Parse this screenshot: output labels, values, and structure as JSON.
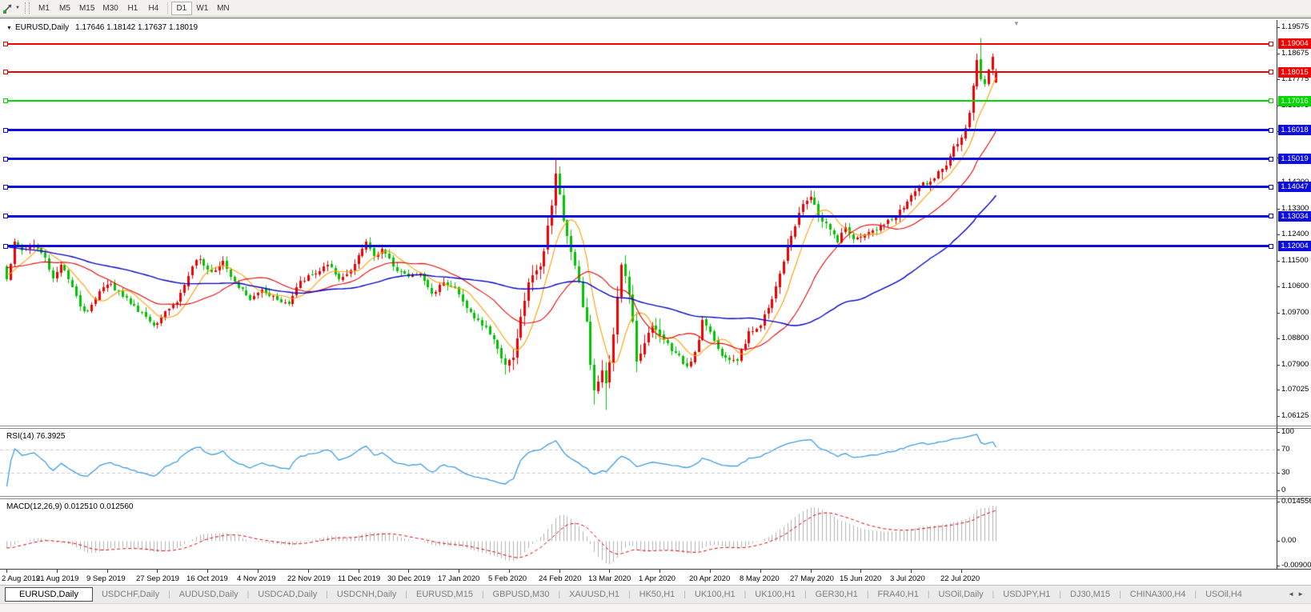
{
  "toolbar": {
    "timeframes": [
      "M1",
      "M5",
      "M15",
      "M30",
      "H1",
      "H4",
      "D1",
      "W1",
      "MN"
    ],
    "active": "D1",
    "separator_after": "H4"
  },
  "chart": {
    "symbol_label": "EURUSD,Daily",
    "ohlc_text": "1.17646 1.18142 1.17637 1.18019"
  },
  "price_axis": {
    "range": {
      "top": 1.19824,
      "bottom": 1.05791
    },
    "ticks": [
      "1.19575",
      "1.18675",
      "1.17775",
      "1.16875",
      "1.15975",
      "1.15075",
      "1.14200",
      "1.13300",
      "1.12400",
      "1.11500",
      "1.10600",
      "1.09700",
      "1.08800",
      "1.07900",
      "1.07025",
      "1.06125"
    ]
  },
  "chart_data": {
    "type": "candlestick",
    "symbol": "EURUSD",
    "timeframe": "Daily",
    "up_color": "#ee0000",
    "down_color": "#00c300",
    "candles": {
      "count": 257,
      "seed": 1337,
      "prehistory": {
        "from": 1.131,
        "to": 1.1095,
        "bars": 60
      },
      "anchors": [
        [
          0,
          1.1085
        ],
        [
          2,
          1.1215
        ],
        [
          4,
          1.1185
        ],
        [
          7,
          1.1205
        ],
        [
          10,
          1.116
        ],
        [
          12,
          1.109
        ],
        [
          14,
          1.1135
        ],
        [
          17,
          1.106
        ],
        [
          19,
          1.099
        ],
        [
          21,
          1.0975
        ],
        [
          24,
          1.1045
        ],
        [
          27,
          1.107
        ],
        [
          30,
          1.1025
        ],
        [
          33,
          1.0995
        ],
        [
          36,
          1.0955
        ],
        [
          38,
          1.0925
        ],
        [
          41,
          1.0975
        ],
        [
          44,
          1.1005
        ],
        [
          48,
          1.113
        ],
        [
          50,
          1.1155
        ],
        [
          53,
          1.111
        ],
        [
          56,
          1.115
        ],
        [
          59,
          1.1075
        ],
        [
          63,
          1.1015
        ],
        [
          66,
          1.105
        ],
        [
          70,
          1.1015
        ],
        [
          73,
          1.1
        ],
        [
          76,
          1.108
        ],
        [
          80,
          1.1105
        ],
        [
          83,
          1.1135
        ],
        [
          86,
          1.1085
        ],
        [
          89,
          1.1115
        ],
        [
          92,
          1.119
        ],
        [
          93,
          1.1215
        ],
        [
          95,
          1.1165
        ],
        [
          97,
          1.119
        ],
        [
          100,
          1.113
        ],
        [
          104,
          1.1095
        ],
        [
          107,
          1.1105
        ],
        [
          110,
          1.1035
        ],
        [
          113,
          1.1075
        ],
        [
          116,
          1.1055
        ],
        [
          119,
          1.0985
        ],
        [
          121,
          1.095
        ],
        [
          124,
          1.092
        ],
        [
          127,
          1.0845
        ],
        [
          129,
          1.079
        ],
        [
          131,
          1.0815
        ],
        [
          133,
          1.0955
        ],
        [
          135,
          1.1075
        ],
        [
          138,
          1.113
        ],
        [
          140,
          1.127
        ],
        [
          142,
          1.145
        ],
        [
          144,
          1.129
        ],
        [
          146,
          1.118
        ],
        [
          148,
          1.1075
        ],
        [
          150,
          1.094
        ],
        [
          152,
          1.07
        ],
        [
          154,
          1.077
        ],
        [
          155,
          1.0725
        ],
        [
          157,
          1.0895
        ],
        [
          159,
          1.1135
        ],
        [
          161,
          1.1035
        ],
        [
          163,
          1.08
        ],
        [
          165,
          1.0865
        ],
        [
          167,
          1.0925
        ],
        [
          170,
          1.0875
        ],
        [
          173,
          1.083
        ],
        [
          176,
          1.0785
        ],
        [
          178,
          1.0835
        ],
        [
          180,
          1.0945
        ],
        [
          182,
          1.0905
        ],
        [
          184,
          1.0845
        ],
        [
          186,
          1.0815
        ],
        [
          189,
          1.0805
        ],
        [
          192,
          1.0905
        ],
        [
          195,
          1.0925
        ],
        [
          197,
          1.0985
        ],
        [
          200,
          1.1105
        ],
        [
          203,
          1.1235
        ],
        [
          206,
          1.1345
        ],
        [
          208,
          1.137
        ],
        [
          210,
          1.1305
        ],
        [
          213,
          1.1255
        ],
        [
          215,
          1.1215
        ],
        [
          217,
          1.1265
        ],
        [
          219,
          1.1225
        ],
        [
          222,
          1.124
        ],
        [
          224,
          1.1255
        ],
        [
          227,
          1.1275
        ],
        [
          230,
          1.13
        ],
        [
          233,
          1.1355
        ],
        [
          236,
          1.141
        ],
        [
          240,
          1.1435
        ],
        [
          243,
          1.148
        ],
        [
          245,
          1.1545
        ],
        [
          247,
          1.1575
        ],
        [
          249,
          1.166
        ],
        [
          250,
          1.1755
        ],
        [
          251,
          1.1845
        ],
        [
          252,
          1.1778
        ],
        [
          253,
          1.1762
        ],
        [
          254,
          1.181
        ],
        [
          255,
          1.1855
        ],
        [
          256,
          1.18019
        ]
      ],
      "overrides": [
        {
          "i": 142,
          "high": 1.1499
        },
        {
          "i": 152,
          "low": 1.0652
        },
        {
          "i": 155,
          "low": 1.0633
        },
        {
          "i": 252,
          "open": 1.1847,
          "high": 1.192,
          "close": 1.1778
        },
        {
          "i": 256,
          "open": 1.17646,
          "high": 1.18142,
          "low": 1.17637,
          "close": 1.18019
        }
      ]
    },
    "moving_averages": [
      {
        "period": 8,
        "color": "#ff9c00"
      },
      {
        "period": 21,
        "color": "#e40000"
      },
      {
        "period": 60,
        "color": "#0000c8"
      }
    ],
    "horizontal_lines": [
      {
        "price": 1.19004,
        "label": "1.19004",
        "color": "#f20000",
        "thickness": 2
      },
      {
        "price": 1.18015,
        "label": "1.18015",
        "color": "#f20000",
        "thickness": 2
      },
      {
        "price": 1.17016,
        "label": "1.17016",
        "color": "#00d800",
        "thickness": 2
      },
      {
        "price": 1.16018,
        "label": "1.16018",
        "color": "#0d0de0",
        "thickness": 3
      },
      {
        "price": 1.15019,
        "label": "1.15019",
        "color": "#0d0de0",
        "thickness": 3
      },
      {
        "price": 1.14047,
        "label": "1.14047",
        "color": "#0d0de0",
        "thickness": 3
      },
      {
        "price": 1.13034,
        "label": "1.13034",
        "color": "#0d0de0",
        "thickness": 3
      },
      {
        "price": 1.12004,
        "label": "1.12004",
        "color": "#0d0de0",
        "thickness": 3
      }
    ],
    "rsi": {
      "label": "RSI(14) 76.3925",
      "period": 14,
      "current": "76.3925",
      "levels": [
        70,
        30
      ],
      "axis_labels": [
        "100",
        "70",
        "30",
        "0"
      ],
      "range": [
        0,
        100
      ],
      "color": "#3c9ce0",
      "level_color": "#c8c8c8"
    },
    "macd": {
      "label": "MACD(12,26,9) 0.012510 0.012560",
      "fast": 12,
      "slow": 26,
      "signal_period": 9,
      "current_main": "0.012510",
      "current_signal": "0.012560",
      "axis_labels": [
        "0.014556",
        "0.00",
        "-0.009001"
      ],
      "range": {
        "top": 0.0152,
        "bottom": -0.0102
      },
      "hist_color": "#b0b0b0",
      "signal_color": "#dd0000"
    },
    "x_axis": {
      "candles_per_label": 13,
      "labels": [
        "2 Aug 2019",
        "21 Aug 2019",
        "9 Sep 2019",
        "27 Sep 2019",
        "16 Oct 2019",
        "4 Nov 2019",
        "22 Nov 2019",
        "11 Dec 2019",
        "30 Dec 2019",
        "17 Jan 2020",
        "5 Feb 2020",
        "24 Feb 2020",
        "13 Mar 2020",
        "1 Apr 2020",
        "20 Apr 2020",
        "8 May 2020",
        "27 May 2020",
        "15 Jun 2020",
        "3 Jul 2020",
        "22 Jul 2020"
      ]
    }
  },
  "tabs": {
    "active_index": 0,
    "items": [
      "EURUSD,Daily",
      "USDCHF,Daily",
      "AUDUSD,Daily",
      "USDCAD,Daily",
      "USDCNH,Daily",
      "EURUSD,M15",
      "GBPUSD,M30",
      "XAUUSD,H1",
      "HK50,H1",
      "UK100,H1",
      "UK100,H1",
      "GER30,H1",
      "FRA40,H1",
      "USOil,Daily",
      "USDJPY,H1",
      "DJ30,M15",
      "CHINA300,H4",
      "USOil,H4"
    ]
  }
}
